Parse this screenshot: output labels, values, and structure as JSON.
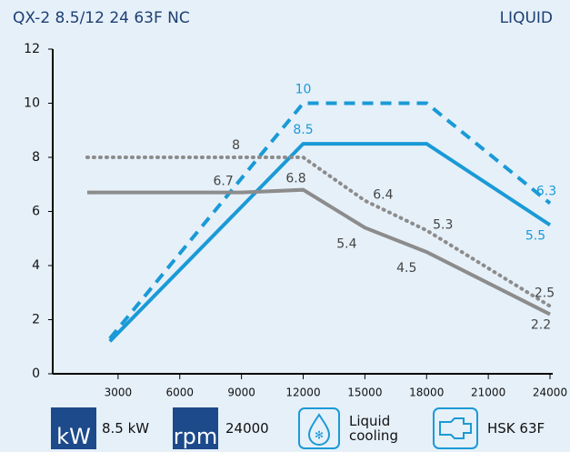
{
  "chart_data": {
    "type": "line",
    "title": "QX-2 8.5/12 24 63F NC",
    "subtitle": "LIQUID",
    "xlim": [
      0,
      24000
    ],
    "xticks": [
      3000,
      6000,
      9000,
      12000,
      15000,
      18000,
      21000,
      24000
    ],
    "ylim": [
      0,
      12
    ],
    "yticks": [
      0,
      2,
      4,
      6,
      8,
      10,
      12
    ],
    "grid": false,
    "series": [
      {
        "style": "dashed",
        "color": "#1a9ad6",
        "x": [
          2600,
          12000,
          18000,
          24000
        ],
        "values": [
          1.3,
          10,
          10,
          6.3
        ],
        "value_labels": [
          null,
          "10",
          null,
          "6.3"
        ]
      },
      {
        "style": "solid",
        "color": "#1a9ad6",
        "x": [
          2600,
          12000,
          18000,
          24000
        ],
        "values": [
          1.2,
          8.5,
          8.5,
          5.5
        ],
        "value_labels": [
          null,
          "8.5",
          null,
          "5.5"
        ]
      },
      {
        "style": "dotted",
        "color": "#8c8c8c",
        "x": [
          1500,
          9000,
          12000,
          15000,
          18000,
          24000
        ],
        "values": [
          8,
          8,
          8,
          6.4,
          5.3,
          2.5
        ],
        "value_labels": [
          null,
          "8",
          null,
          "6.4",
          "5.3",
          "2.5"
        ]
      },
      {
        "style": "solid",
        "color": "#8c8c8c",
        "x": [
          1500,
          9000,
          12000,
          15000,
          18000,
          24000
        ],
        "values": [
          6.7,
          6.7,
          6.8,
          5.4,
          4.5,
          2.2
        ],
        "value_labels": [
          null,
          "6.7",
          "6.8",
          "5.4",
          "4.5",
          "2.2"
        ]
      }
    ]
  },
  "legend_items": [
    {
      "icon": "kW",
      "label": "8.5 kW"
    },
    {
      "icon": "rpm",
      "label": "24000"
    },
    {
      "label": "Liquid cooling"
    },
    {
      "label": "HSK 63F"
    }
  ]
}
